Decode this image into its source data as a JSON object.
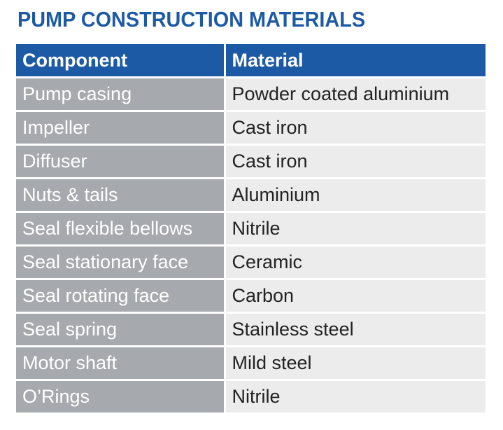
{
  "title": "PUMP CONSTRUCTION MATERIALS",
  "colors": {
    "header_bg": "#1d5aa5",
    "title_text": "#1d5aa5",
    "component_cell_bg": "#a6a9ad",
    "material_cell_bg": "#ececec"
  },
  "table": {
    "headers": [
      "Component",
      "Material"
    ],
    "rows": [
      [
        "Pump casing",
        "Powder coated aluminium"
      ],
      [
        "Impeller",
        "Cast iron"
      ],
      [
        "Diffuser",
        "Cast iron"
      ],
      [
        "Nuts & tails",
        "Aluminium"
      ],
      [
        "Seal flexible bellows",
        "Nitrile"
      ],
      [
        "Seal stationary face",
        "Ceramic"
      ],
      [
        "Seal rotating face",
        "Carbon"
      ],
      [
        "Seal spring",
        "Stainless steel"
      ],
      [
        "Motor shaft",
        "Mild steel"
      ],
      [
        "O’Rings",
        "Nitrile"
      ]
    ]
  }
}
